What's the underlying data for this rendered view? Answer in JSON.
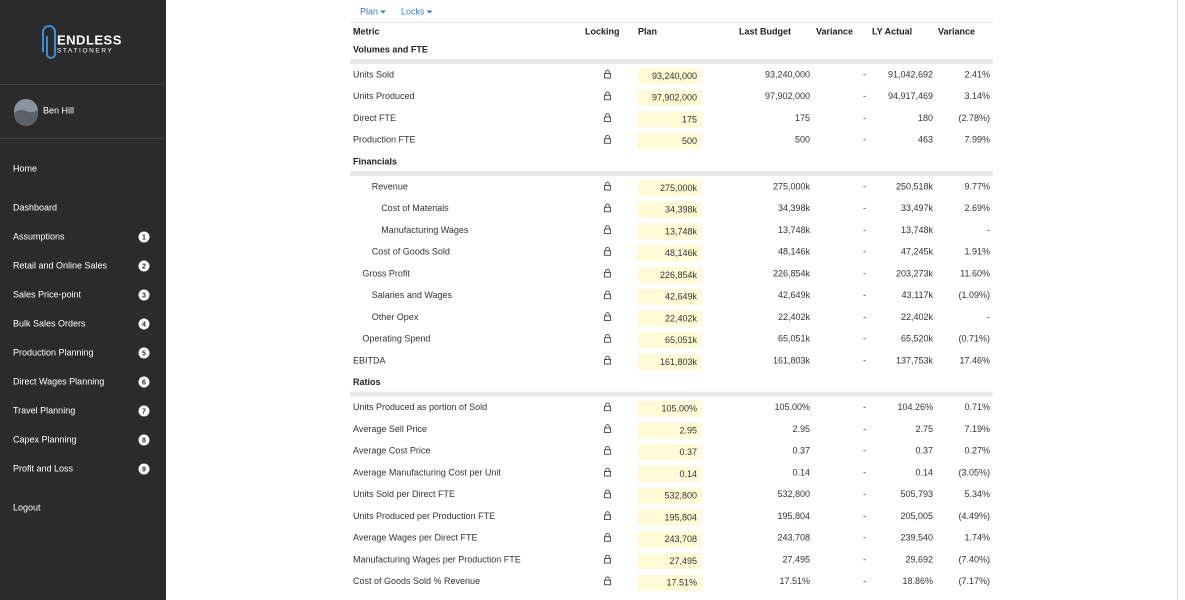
{
  "sidebar": {
    "logo": {
      "line1": "ENDLESS",
      "line2": "STATIONERY"
    },
    "user": "Ben Hill",
    "nav": [
      {
        "label": "Home"
      },
      {
        "label": "Dashboard"
      },
      {
        "label": "Assumptions",
        "badge": 1
      },
      {
        "label": "Retail and Online Sales",
        "badge": 2
      },
      {
        "label": "Sales Price-point",
        "badge": 3
      },
      {
        "label": "Bulk Sales Orders",
        "badge": 4
      },
      {
        "label": "Production Planning",
        "badge": 5
      },
      {
        "label": "Direct Wages Planning",
        "badge": 6
      },
      {
        "label": "Travel Planning",
        "badge": 7
      },
      {
        "label": "Capex Planning",
        "badge": 8
      },
      {
        "label": "Profit and Loss",
        "badge": 9
      },
      {
        "label": "Logout"
      }
    ]
  },
  "toolbar": [
    "Plan",
    "Locks"
  ],
  "table": {
    "columns": [
      "Metric",
      "Locking",
      "Plan",
      "Last Budget",
      "Variance",
      "LY Actual",
      "Variance"
    ],
    "sections": [
      {
        "title": "Volumes and FTE",
        "rows": [
          {
            "metric": "Units Sold",
            "plan": "93,240,000",
            "last_budget": "93,240,000",
            "variance": "-",
            "ly_actual": "91,042,692",
            "ly_variance": "2.41%"
          },
          {
            "metric": "Units Produced",
            "plan": "97,902,000",
            "last_budget": "97,902,000",
            "variance": "-",
            "ly_actual": "94,917,469",
            "ly_variance": "3.14%"
          },
          {
            "metric": "Direct FTE",
            "plan": "175",
            "last_budget": "175",
            "variance": "-",
            "ly_actual": "180",
            "ly_variance": "(2.78%)"
          },
          {
            "metric": "Production FTE",
            "plan": "500",
            "last_budget": "500",
            "variance": "-",
            "ly_actual": "463",
            "ly_variance": "7.99%"
          }
        ]
      },
      {
        "title": "Financials",
        "rows": [
          {
            "metric": "Revenue",
            "plan": "275,000k",
            "last_budget": "275,000k",
            "variance": "-",
            "ly_actual": "250,518k",
            "ly_variance": "9.77%"
          },
          {
            "metric": "Cost of Materials",
            "plan": "34,398k",
            "last_budget": "34,398k",
            "variance": "-",
            "ly_actual": "33,497k",
            "ly_variance": "2.69%"
          },
          {
            "metric": "Manufacturing Wages",
            "plan": "13,748k",
            "last_budget": "13,748k",
            "variance": "-",
            "ly_actual": "13,748k",
            "ly_variance": "-"
          },
          {
            "metric": "Cost of Goods Sold",
            "plan": "48,146k",
            "last_budget": "48,146k",
            "variance": "-",
            "ly_actual": "47,245k",
            "ly_variance": "1.91%"
          },
          {
            "metric": "Gross Profit",
            "plan": "226,854k",
            "last_budget": "226,854k",
            "variance": "-",
            "ly_actual": "203,273k",
            "ly_variance": "11.60%"
          },
          {
            "metric": "Salaries and Wages",
            "plan": "42,649k",
            "last_budget": "42,649k",
            "variance": "-",
            "ly_actual": "43,117k",
            "ly_variance": "(1.09%)"
          },
          {
            "metric": "Other Opex",
            "plan": "22,402k",
            "last_budget": "22,402k",
            "variance": "-",
            "ly_actual": "22,402k",
            "ly_variance": "-"
          },
          {
            "metric": "Operating Spend",
            "plan": "65,051k",
            "last_budget": "65,051k",
            "variance": "-",
            "ly_actual": "65,520k",
            "ly_variance": "(0.71%)"
          },
          {
            "metric": "EBITDA",
            "plan": "161,803k",
            "last_budget": "161,803k",
            "variance": "-",
            "ly_actual": "137,753k",
            "ly_variance": "17.46%"
          }
        ]
      },
      {
        "title": "Ratios",
        "rows": [
          {
            "metric": "Units Produced as portion of Sold",
            "plan": "105.00%",
            "last_budget": "105.00%",
            "variance": "-",
            "ly_actual": "104.26%",
            "ly_variance": "0.71%"
          },
          {
            "metric": "Average Sell Price",
            "plan": "2.95",
            "last_budget": "2.95",
            "variance": "-",
            "ly_actual": "2.75",
            "ly_variance": "7.19%"
          },
          {
            "metric": "Average Cost Price",
            "plan": "0.37",
            "last_budget": "0.37",
            "variance": "-",
            "ly_actual": "0.37",
            "ly_variance": "0.27%"
          },
          {
            "metric": "Average Manufacturing Cost per Unit",
            "plan": "0.14",
            "last_budget": "0.14",
            "variance": "-",
            "ly_actual": "0.14",
            "ly_variance": "(3.05%)"
          },
          {
            "metric": "Units Sold per Direct FTE",
            "plan": "532,800",
            "last_budget": "532,800",
            "variance": "-",
            "ly_actual": "505,793",
            "ly_variance": "5.34%"
          },
          {
            "metric": "Units Produced per Production FTE",
            "plan": "195,804",
            "last_budget": "195,804",
            "variance": "-",
            "ly_actual": "205,005",
            "ly_variance": "(4.49%)"
          },
          {
            "metric": "Average Wages per Direct FTE",
            "plan": "243,708",
            "last_budget": "243,708",
            "variance": "-",
            "ly_actual": "239,540",
            "ly_variance": "1.74%"
          },
          {
            "metric": "Manufacturing Wages per Production FTE",
            "plan": "27,495",
            "last_budget": "27,495",
            "variance": "-",
            "ly_actual": "29,692",
            "ly_variance": "(7.40%)"
          },
          {
            "metric": "Cost of Goods Sold % Revenue",
            "plan": "17.51%",
            "last_budget": "17.51%",
            "variance": "-",
            "ly_actual": "18.86%",
            "ly_variance": "(7.17%)"
          }
        ]
      }
    ]
  }
}
